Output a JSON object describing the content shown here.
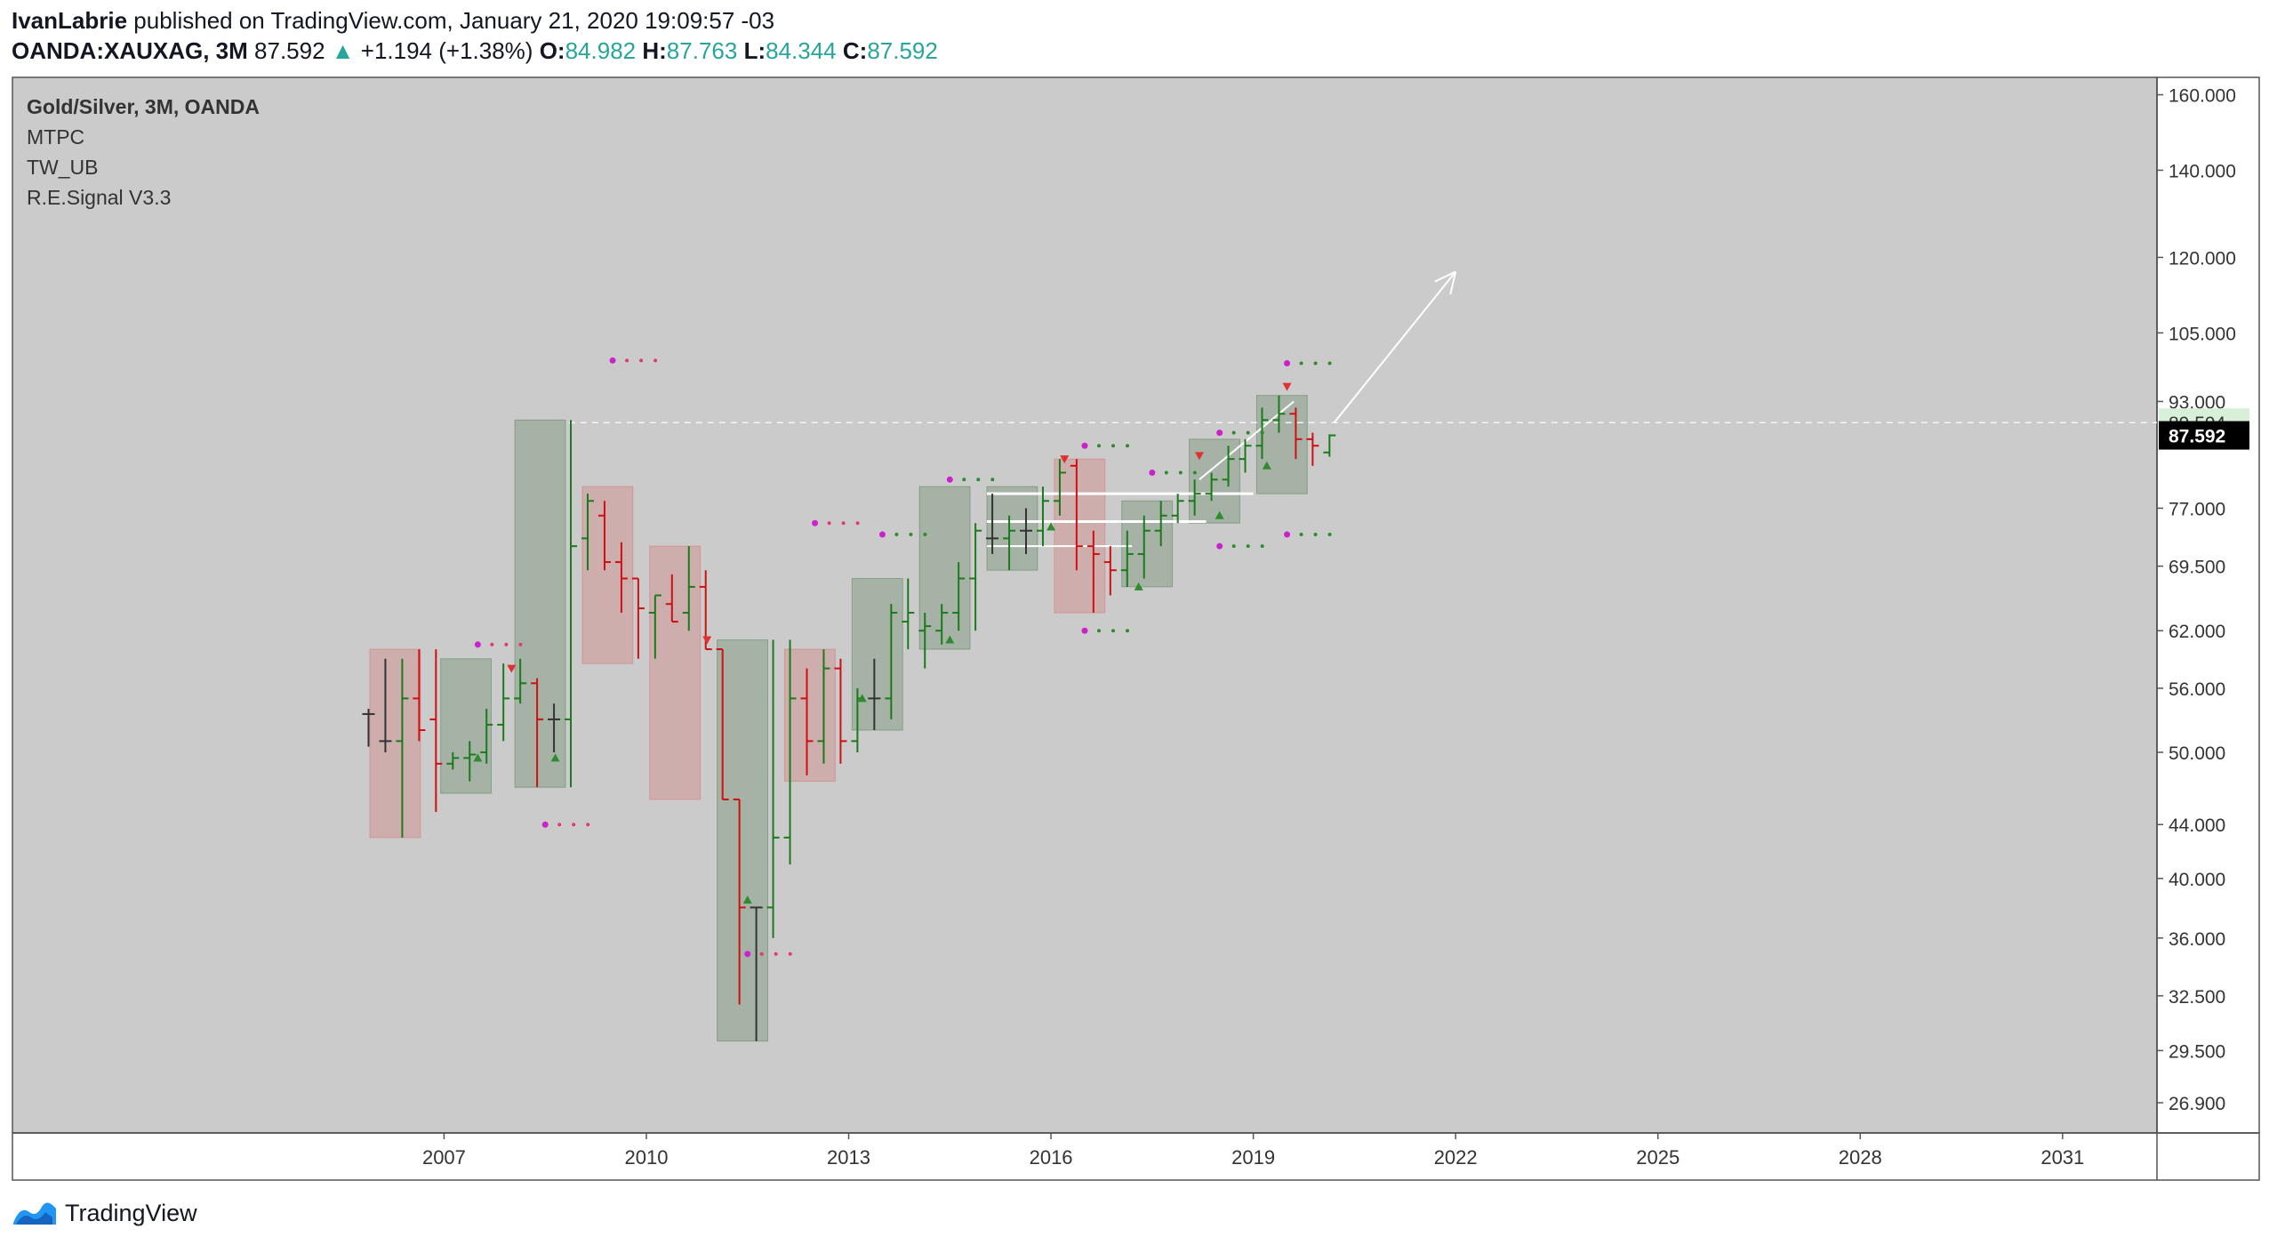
{
  "header": {
    "author": "IvanLabrie",
    "published_text": "published on TradingView.com, January 21, 2020 19:09:57 -03",
    "symbol": "OANDA:XAUXAG, 3M",
    "last": "87.592",
    "change_arrow": "▲",
    "change": "+1.194 (+1.38%)",
    "open_key": "O:",
    "open": "84.982",
    "high_key": "H:",
    "high": "87.763",
    "low_key": "L:",
    "low": "84.344",
    "close_key": "C:",
    "close": "87.592"
  },
  "legend": {
    "title": "Gold/Silver, 3M, OANDA",
    "indicators": [
      "MTPC",
      "TW_UB",
      "R.E.Signal V3.3"
    ]
  },
  "footer": {
    "brand": "TradingView",
    "logo_icon": "tradingview-logo-icon"
  },
  "colors": {
    "background": "#cbcbcb",
    "up": "#1b7a1b",
    "down": "#d01010",
    "flat": "#333333",
    "box_green": "#4e7a4e",
    "box_red": "#d86a6a",
    "signal_dot": "#cc22cc",
    "price_label_bg": "#000000",
    "level_label_bg": "#d8f0d8"
  },
  "chart_data": {
    "type": "ohlc",
    "title": "Gold/Silver, 3M, OANDA",
    "y_scale": "log",
    "ylim": [
      25.5,
      165
    ],
    "x_ticks": [
      "2007",
      "2010",
      "2013",
      "2016",
      "2019",
      "2022",
      "2025",
      "2028",
      "2031"
    ],
    "x_tick_values": [
      2007,
      2010,
      2013,
      2016,
      2019,
      2022,
      2025,
      2028,
      2031
    ],
    "xlim": [
      2000.6,
      2032.4
    ],
    "y_ticks": [
      "160.000",
      "140.000",
      "120.000",
      "105.000",
      "93.000",
      "77.000",
      "69.500",
      "62.000",
      "56.000",
      "50.000",
      "44.000",
      "40.000",
      "36.000",
      "32.500",
      "29.500",
      "26.900"
    ],
    "y_tick_values": [
      160,
      140,
      120,
      105,
      93,
      77,
      69.5,
      62,
      56,
      50,
      44,
      40,
      36,
      32.5,
      29.5,
      26.9
    ],
    "last_price_label": "87.592",
    "last_price": 87.592,
    "level_label": "89.594",
    "level": 89.594,
    "bars": [
      {
        "t": 2005.88,
        "o": 53.5,
        "h": 54,
        "l": 50.5,
        "c": 53.5
      },
      {
        "t": 2006.13,
        "o": 51,
        "h": 59,
        "l": 50,
        "c": 51
      },
      {
        "t": 2006.38,
        "o": 51,
        "h": 59,
        "l": 43,
        "c": 55
      },
      {
        "t": 2006.63,
        "o": 55,
        "h": 60,
        "l": 51,
        "c": 52
      },
      {
        "t": 2006.88,
        "o": 53,
        "h": 60,
        "l": 45,
        "c": 49
      },
      {
        "t": 2007.13,
        "o": 49,
        "h": 50,
        "l": 48.5,
        "c": 49.5
      },
      {
        "t": 2007.38,
        "o": 49.5,
        "h": 51,
        "l": 47.5,
        "c": 49.8
      },
      {
        "t": 2007.63,
        "o": 50,
        "h": 54,
        "l": 49,
        "c": 52.5
      },
      {
        "t": 2007.88,
        "o": 52.5,
        "h": 58.5,
        "l": 51,
        "c": 55
      },
      {
        "t": 2008.13,
        "o": 55,
        "h": 59,
        "l": 54.5,
        "c": 56.5
      },
      {
        "t": 2008.38,
        "o": 56.5,
        "h": 57,
        "l": 47,
        "c": 53
      },
      {
        "t": 2008.63,
        "o": 53,
        "h": 54.5,
        "l": 50,
        "c": 53
      },
      {
        "t": 2008.88,
        "o": 53,
        "h": 90,
        "l": 47,
        "c": 72
      },
      {
        "t": 2009.13,
        "o": 73,
        "h": 79,
        "l": 69,
        "c": 78
      },
      {
        "t": 2009.38,
        "o": 76,
        "h": 78,
        "l": 69,
        "c": 70
      },
      {
        "t": 2009.63,
        "o": 70,
        "h": 72.5,
        "l": 64,
        "c": 68
      },
      {
        "t": 2009.88,
        "o": 68,
        "h": 68,
        "l": 59,
        "c": 64.5
      },
      {
        "t": 2010.13,
        "o": 64,
        "h": 66,
        "l": 59,
        "c": 66
      },
      {
        "t": 2010.38,
        "o": 65,
        "h": 68.5,
        "l": 63,
        "c": 63
      },
      {
        "t": 2010.63,
        "o": 64,
        "h": 72,
        "l": 62,
        "c": 67
      },
      {
        "t": 2010.88,
        "o": 67,
        "h": 69,
        "l": 60,
        "c": 60
      },
      {
        "t": 2011.13,
        "o": 60,
        "h": 60,
        "l": 46,
        "c": 46
      },
      {
        "t": 2011.38,
        "o": 46,
        "h": 46,
        "l": 32,
        "c": 38
      },
      {
        "t": 2011.63,
        "o": 38,
        "h": 38,
        "l": 30,
        "c": 38
      },
      {
        "t": 2011.88,
        "o": 38,
        "h": 61,
        "l": 36,
        "c": 43
      },
      {
        "t": 2012.13,
        "o": 43,
        "h": 61,
        "l": 41,
        "c": 55
      },
      {
        "t": 2012.38,
        "o": 55,
        "h": 58,
        "l": 48,
        "c": 51
      },
      {
        "t": 2012.63,
        "o": 51,
        "h": 60,
        "l": 49,
        "c": 58
      },
      {
        "t": 2012.88,
        "o": 58,
        "h": 59,
        "l": 49,
        "c": 51
      },
      {
        "t": 2013.13,
        "o": 51,
        "h": 56,
        "l": 50,
        "c": 55
      },
      {
        "t": 2013.38,
        "o": 55,
        "h": 59,
        "l": 52,
        "c": 55
      },
      {
        "t": 2013.63,
        "o": 55,
        "h": 65,
        "l": 53,
        "c": 64
      },
      {
        "t": 2013.88,
        "o": 63,
        "h": 68,
        "l": 60,
        "c": 64
      },
      {
        "t": 2014.13,
        "o": 62,
        "h": 64,
        "l": 58,
        "c": 62.5
      },
      {
        "t": 2014.38,
        "o": 62,
        "h": 65,
        "l": 60.5,
        "c": 64
      },
      {
        "t": 2014.63,
        "o": 64,
        "h": 70,
        "l": 62,
        "c": 68
      },
      {
        "t": 2014.88,
        "o": 68,
        "h": 75,
        "l": 62,
        "c": 74
      },
      {
        "t": 2015.13,
        "o": 73,
        "h": 79,
        "l": 71,
        "c": 73
      },
      {
        "t": 2015.38,
        "o": 73,
        "h": 76,
        "l": 69,
        "c": 74
      },
      {
        "t": 2015.63,
        "o": 74,
        "h": 77,
        "l": 71,
        "c": 74
      },
      {
        "t": 2015.88,
        "o": 74,
        "h": 80,
        "l": 72,
        "c": 78
      },
      {
        "t": 2016.13,
        "o": 78,
        "h": 84,
        "l": 76,
        "c": 82
      },
      {
        "t": 2016.38,
        "o": 83,
        "h": 84,
        "l": 69,
        "c": 72
      },
      {
        "t": 2016.63,
        "o": 72,
        "h": 74,
        "l": 64,
        "c": 71
      },
      {
        "t": 2016.88,
        "o": 70,
        "h": 72,
        "l": 66,
        "c": 69
      },
      {
        "t": 2017.13,
        "o": 69,
        "h": 74,
        "l": 67,
        "c": 71
      },
      {
        "t": 2017.38,
        "o": 71,
        "h": 76,
        "l": 68,
        "c": 74
      },
      {
        "t": 2017.63,
        "o": 74,
        "h": 78,
        "l": 72,
        "c": 76
      },
      {
        "t": 2017.88,
        "o": 76,
        "h": 79,
        "l": 75,
        "c": 78
      },
      {
        "t": 2018.13,
        "o": 78,
        "h": 81,
        "l": 76,
        "c": 79
      },
      {
        "t": 2018.38,
        "o": 79,
        "h": 82,
        "l": 78,
        "c": 81
      },
      {
        "t": 2018.63,
        "o": 81,
        "h": 86,
        "l": 80,
        "c": 84
      },
      {
        "t": 2018.88,
        "o": 84,
        "h": 87,
        "l": 82,
        "c": 86
      },
      {
        "t": 2019.13,
        "o": 86,
        "h": 92,
        "l": 84,
        "c": 90
      },
      {
        "t": 2019.38,
        "o": 90,
        "h": 94,
        "l": 88,
        "c": 91
      },
      {
        "t": 2019.63,
        "o": 91,
        "h": 92,
        "l": 84,
        "c": 87
      },
      {
        "t": 2019.88,
        "o": 87,
        "h": 88,
        "l": 83,
        "c": 86
      },
      {
        "t": 2020.13,
        "o": 84.98,
        "h": 87.76,
        "l": 84.34,
        "c": 87.59
      }
    ],
    "boxes": [
      {
        "t0": 2005.9,
        "t1": 2006.65,
        "low": 43,
        "high": 60,
        "color": "red"
      },
      {
        "t0": 2006.95,
        "t1": 2007.7,
        "low": 46.5,
        "high": 59,
        "color": "green"
      },
      {
        "t0": 2008.05,
        "t1": 2008.8,
        "low": 47,
        "high": 90,
        "color": "green"
      },
      {
        "t0": 2009.05,
        "t1": 2009.8,
        "low": 58.5,
        "high": 80,
        "color": "red"
      },
      {
        "t0": 2010.05,
        "t1": 2010.8,
        "low": 46,
        "high": 72,
        "color": "red"
      },
      {
        "t0": 2011.05,
        "t1": 2011.8,
        "low": 30,
        "high": 61,
        "color": "green"
      },
      {
        "t0": 2012.05,
        "t1": 2012.8,
        "low": 47.5,
        "high": 60,
        "color": "red"
      },
      {
        "t0": 2013.05,
        "t1": 2013.8,
        "low": 52,
        "high": 68,
        "color": "green"
      },
      {
        "t0": 2014.05,
        "t1": 2014.8,
        "low": 60,
        "high": 80,
        "color": "green"
      },
      {
        "t0": 2015.05,
        "t1": 2015.8,
        "low": 69,
        "high": 80,
        "color": "green"
      },
      {
        "t0": 2016.05,
        "t1": 2016.8,
        "low": 64,
        "high": 84,
        "color": "red"
      },
      {
        "t0": 2017.05,
        "t1": 2017.8,
        "low": 67,
        "high": 78,
        "color": "green"
      },
      {
        "t0": 2018.05,
        "t1": 2018.8,
        "low": 75,
        "high": 87,
        "color": "green"
      },
      {
        "t0": 2019.05,
        "t1": 2019.8,
        "low": 79,
        "high": 94,
        "color": "green"
      }
    ],
    "signal_dots": [
      {
        "t": 2007.5,
        "v": 60.5
      },
      {
        "t": 2008.5,
        "v": 44
      },
      {
        "t": 2009.5,
        "v": 100
      },
      {
        "t": 2011.5,
        "v": 35
      },
      {
        "t": 2012.5,
        "v": 75
      },
      {
        "t": 2013.5,
        "v": 73.5
      },
      {
        "t": 2014.5,
        "v": 81
      },
      {
        "t": 2016.5,
        "v": 86
      },
      {
        "t": 2016.5,
        "v": 62
      },
      {
        "t": 2017.5,
        "v": 82
      },
      {
        "t": 2018.5,
        "v": 72
      },
      {
        "t": 2018.5,
        "v": 88
      },
      {
        "t": 2019.5,
        "v": 99.5
      },
      {
        "t": 2019.5,
        "v": 73.5
      }
    ],
    "signal_markers": [
      {
        "t": 2007.5,
        "v": 49.5,
        "dir": "up"
      },
      {
        "t": 2008.0,
        "v": 58,
        "dir": "down"
      },
      {
        "t": 2008.65,
        "v": 49.5,
        "dir": "up"
      },
      {
        "t": 2010.9,
        "v": 61,
        "dir": "down"
      },
      {
        "t": 2011.5,
        "v": 38.5,
        "dir": "up"
      },
      {
        "t": 2013.2,
        "v": 55,
        "dir": "up"
      },
      {
        "t": 2014.5,
        "v": 61,
        "dir": "up"
      },
      {
        "t": 2016.0,
        "v": 74.5,
        "dir": "up"
      },
      {
        "t": 2016.2,
        "v": 84,
        "dir": "down"
      },
      {
        "t": 2017.3,
        "v": 67,
        "dir": "up"
      },
      {
        "t": 2018.2,
        "v": 84.5,
        "dir": "down"
      },
      {
        "t": 2018.5,
        "v": 76,
        "dir": "up"
      },
      {
        "t": 2019.2,
        "v": 83,
        "dir": "up"
      },
      {
        "t": 2019.5,
        "v": 95.5,
        "dir": "down"
      }
    ],
    "projection_arrow": {
      "from": {
        "t": 2020.2,
        "v": 89.6
      },
      "to": {
        "t": 2022.0,
        "v": 117
      }
    }
  }
}
